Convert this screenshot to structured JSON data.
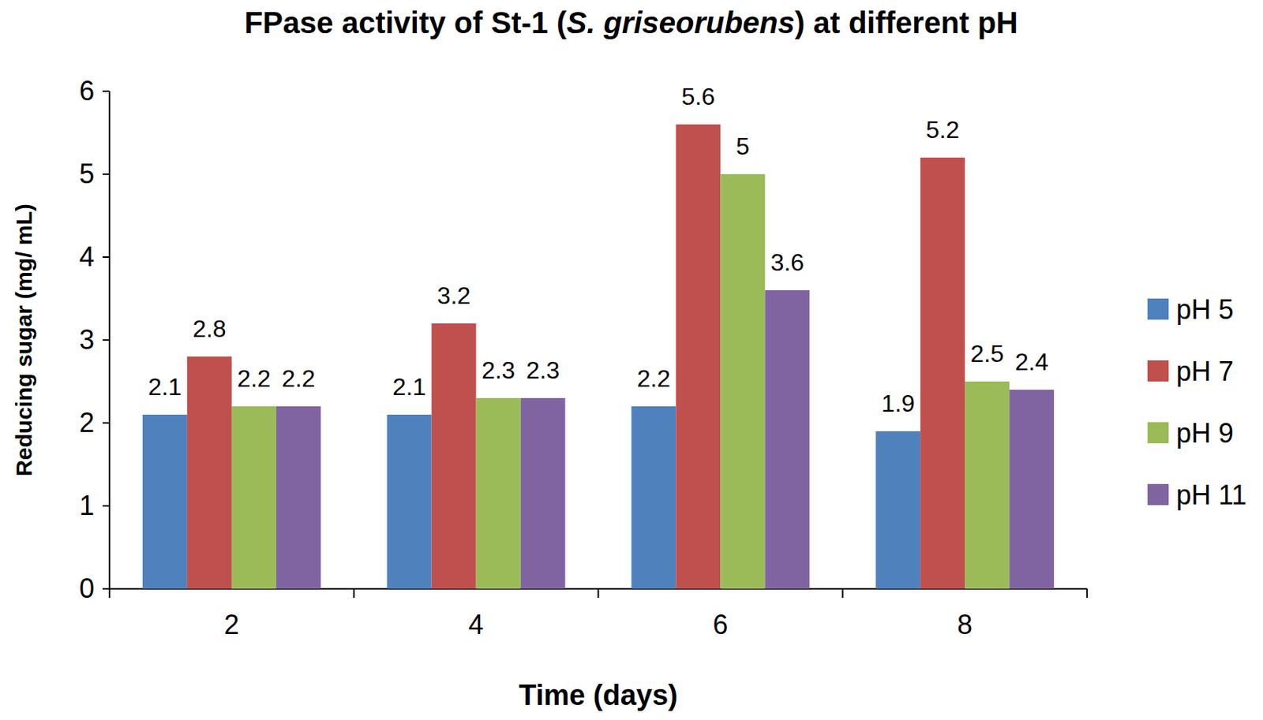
{
  "chart_data": {
    "type": "bar",
    "title": "FPase activity of St-1 (S. griseorubens) at different pH",
    "x_label": "Time (days)",
    "y_label": "Reducing sugar (mg/ mL)",
    "categories": [
      "2",
      "4",
      "6",
      "8"
    ],
    "series": [
      {
        "name": "pH 5",
        "color": "#4f81bd",
        "values": [
          2.1,
          2.1,
          2.2,
          1.9
        ]
      },
      {
        "name": "pH 7",
        "color": "#c0504d",
        "values": [
          2.8,
          3.2,
          5.6,
          5.2
        ]
      },
      {
        "name": "pH 9",
        "color": "#9bbb59",
        "values": [
          2.2,
          2.3,
          5,
          2.5
        ]
      },
      {
        "name": "pH 11",
        "color": "#8064a2",
        "values": [
          2.2,
          2.3,
          3.6,
          2.4
        ]
      }
    ],
    "ylim": [
      0,
      6
    ],
    "yticks": [
      0,
      1,
      2,
      3,
      4,
      5,
      6
    ],
    "grid": false,
    "legend": "right",
    "data_labels": true
  }
}
